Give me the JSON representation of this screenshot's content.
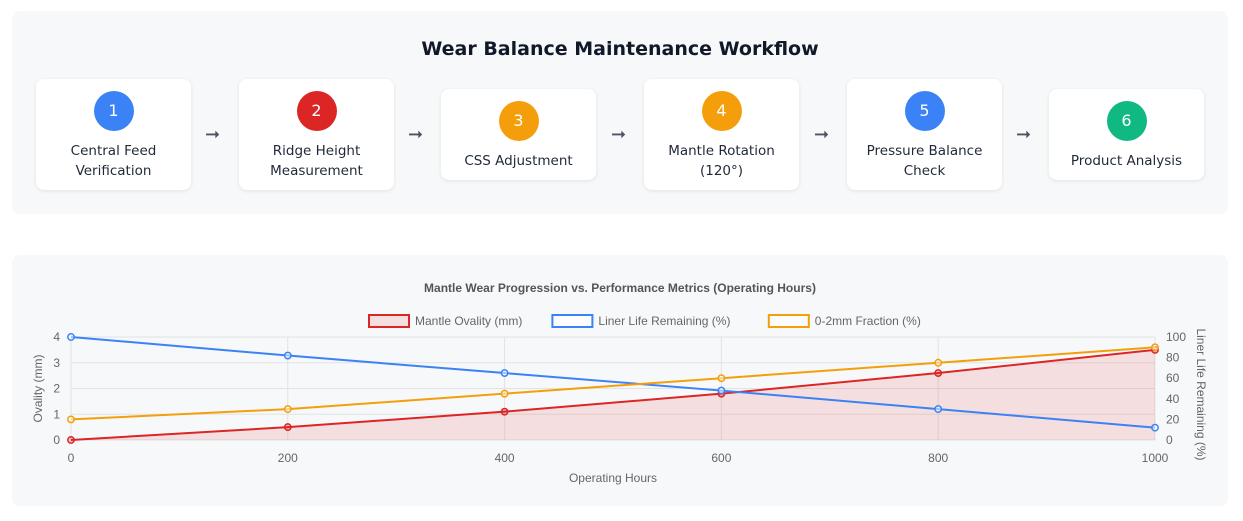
{
  "workflow": {
    "title": "Wear Balance Maintenance Workflow",
    "arrow_glyph": "➞",
    "steps": [
      {
        "number": "1",
        "label_lines": [
          "Central Feed",
          "Verification"
        ],
        "color": "#3b82f6"
      },
      {
        "number": "2",
        "label_lines": [
          "Ridge Height",
          "Measurement"
        ],
        "color": "#dc2626"
      },
      {
        "number": "3",
        "label_lines": [
          "CSS Adjustment"
        ],
        "color": "#f59e0b"
      },
      {
        "number": "4",
        "label_lines": [
          "Mantle Rotation",
          "(120°)"
        ],
        "color": "#f59e0b"
      },
      {
        "number": "5",
        "label_lines": [
          "Pressure Balance",
          "Check"
        ],
        "color": "#3b82f6"
      },
      {
        "number": "6",
        "label_lines": [
          "Product Analysis"
        ],
        "color": "#10b981"
      }
    ]
  },
  "chart_data": {
    "type": "line",
    "title": "Mantle Wear Progression vs. Performance Metrics (Operating Hours)",
    "xlabel": "Operating Hours",
    "ylabel": "Ovality (mm)",
    "y2label": "Liner Life Remaining (%)",
    "x": [
      0,
      200,
      400,
      600,
      800,
      1000
    ],
    "x_ticks": [
      0,
      200,
      400,
      600,
      800,
      1000
    ],
    "xlim": [
      0,
      1000
    ],
    "ylim": [
      0,
      4
    ],
    "y_ticks": [
      0,
      1,
      2,
      3,
      4
    ],
    "y2lim": [
      0,
      100
    ],
    "y2_ticks": [
      0,
      20,
      40,
      60,
      80,
      100
    ],
    "grid": true,
    "legend_position": "top-center",
    "series": [
      {
        "name": "Mantle Ovality (mm)",
        "axis": "left",
        "values": [
          0,
          0.5,
          1.1,
          1.8,
          2.6,
          3.5
        ],
        "color": "#dc2626",
        "fill": "rgba(220,38,38,0.12)"
      },
      {
        "name": "Liner Life Remaining (%)",
        "axis": "right",
        "values": [
          100,
          82,
          65,
          48,
          30,
          12
        ],
        "color": "#3b82f6"
      },
      {
        "name": "0-2mm Fraction (%)",
        "axis": "right",
        "values": [
          20,
          30,
          45,
          60,
          75,
          90
        ],
        "color": "#f59e0b"
      }
    ]
  }
}
